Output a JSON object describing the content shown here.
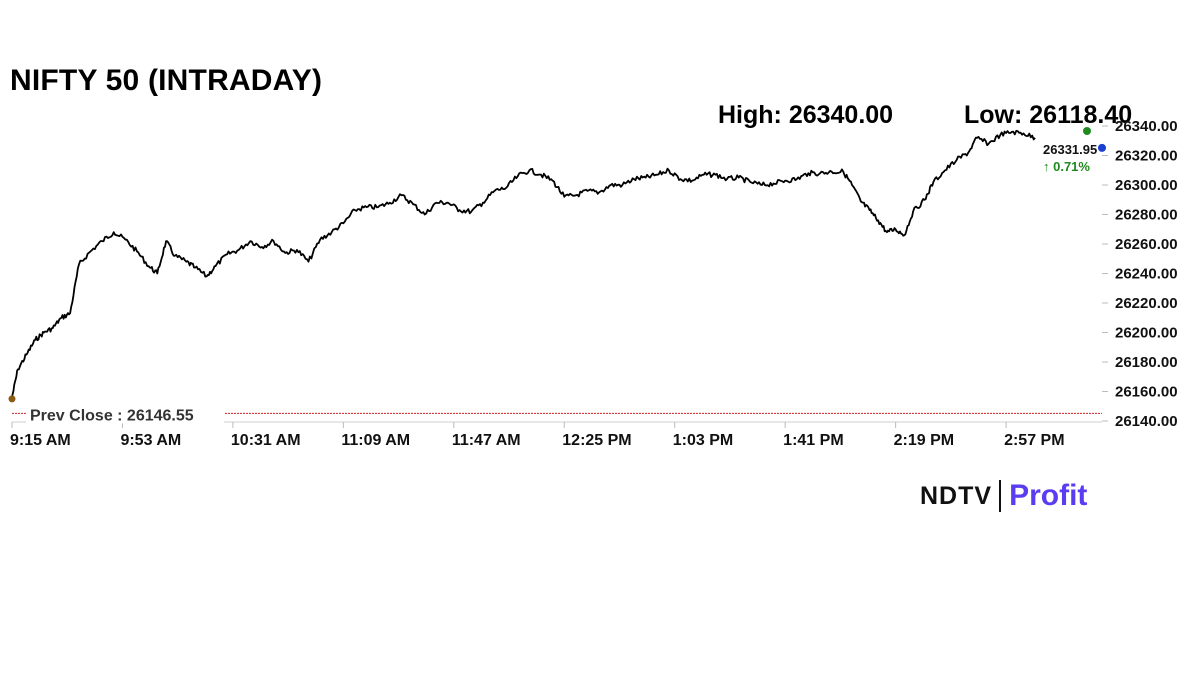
{
  "title": "NIFTY 50 (INTRADAY)",
  "high_label": "High: 26340.00",
  "low_label": "Low: 26118.40",
  "last_value_label": "26331.95",
  "last_change_label": "↑ 0.71%",
  "prev_close_label": "Prev Close : 26146.55",
  "logo": {
    "ndtv": "NDTV",
    "profit": "Profit"
  },
  "colors": {
    "line": "#000000",
    "prev_close": "#cc2222",
    "change_up": "#1f8a1f",
    "marker_high": "#1f8a1f",
    "marker_last": "#1a3fd1",
    "marker_open": "#8b5a14",
    "brand": "#5a3df0"
  },
  "chart_data": {
    "type": "line",
    "title": "NIFTY 50 (INTRADAY)",
    "xlabel": "",
    "ylabel": "",
    "ylim": [
      26140,
      26340
    ],
    "y_ticks": [
      "26140.00",
      "26160.00",
      "26180.00",
      "26200.00",
      "26220.00",
      "26240.00",
      "26260.00",
      "26280.00",
      "26300.00",
      "26320.00",
      "26340.00"
    ],
    "x_ticks": [
      "9:15 AM",
      "9:53 AM",
      "10:31 AM",
      "11:09 AM",
      "11:47 AM",
      "12:25 PM",
      "1:03 PM",
      "1:41 PM",
      "2:19 PM",
      "2:57 PM"
    ],
    "x_range": [
      "9:15 AM",
      "3:30 PM"
    ],
    "grid": false,
    "prev_close": 26146.55,
    "high": 26340.0,
    "low": 26118.4,
    "last": 26331.95,
    "change_pct": 0.71,
    "series": [
      {
        "points": [
          [
            "9:15 AM",
            26156
          ],
          [
            "9:17 AM",
            26175
          ],
          [
            "9:20 AM",
            26185
          ],
          [
            "9:23 AM",
            26195
          ],
          [
            "9:26 AM",
            26200
          ],
          [
            "9:29 AM",
            26203
          ],
          [
            "9:32 AM",
            26210
          ],
          [
            "9:35 AM",
            26213
          ],
          [
            "9:38 AM",
            26246
          ],
          [
            "9:42 AM",
            26255
          ],
          [
            "9:46 AM",
            26262
          ],
          [
            "9:50 AM",
            26268
          ],
          [
            "9:54 AM",
            26263
          ],
          [
            "9:58 AM",
            26255
          ],
          [
            "10:02 AM",
            26245
          ],
          [
            "10:05 AM",
            26240
          ],
          [
            "10:08 AM",
            26262
          ],
          [
            "10:11 AM",
            26252
          ],
          [
            "10:15 AM",
            26248
          ],
          [
            "10:18 AM",
            26244
          ],
          [
            "10:22 AM",
            26238
          ],
          [
            "10:25 AM",
            26245
          ],
          [
            "10:29 AM",
            26253
          ],
          [
            "10:33 AM",
            26256
          ],
          [
            "10:37 AM",
            26262
          ],
          [
            "10:41 AM",
            26258
          ],
          [
            "10:45 AM",
            26262
          ],
          [
            "10:49 AM",
            26254
          ],
          [
            "10:53 AM",
            26256
          ],
          [
            "10:57 AM",
            26248
          ],
          [
            "11:01 AM",
            26263
          ],
          [
            "11:05 AM",
            26268
          ],
          [
            "11:09 AM",
            26274
          ],
          [
            "11:13 AM",
            26283
          ],
          [
            "11:17 AM",
            26285
          ],
          [
            "11:21 AM",
            26285
          ],
          [
            "11:25 AM",
            26288
          ],
          [
            "11:29 AM",
            26293
          ],
          [
            "11:33 AM",
            26287
          ],
          [
            "11:37 AM",
            26280
          ],
          [
            "11:41 AM",
            26288
          ],
          [
            "11:45 AM",
            26288
          ],
          [
            "11:49 AM",
            26283
          ],
          [
            "11:53 AM",
            26282
          ],
          [
            "11:57 AM",
            26288
          ],
          [
            "12:01 PM",
            26296
          ],
          [
            "12:05 PM",
            26298
          ],
          [
            "12:09 PM",
            26306
          ],
          [
            "12:13 PM",
            26310
          ],
          [
            "12:17 PM",
            26307
          ],
          [
            "12:21 PM",
            26303
          ],
          [
            "12:25 PM",
            26292
          ],
          [
            "12:29 PM",
            26293
          ],
          [
            "12:33 PM",
            26296
          ],
          [
            "12:37 PM",
            26295
          ],
          [
            "12:41 PM",
            26300
          ],
          [
            "12:45 PM",
            26300
          ],
          [
            "12:49 PM",
            26304
          ],
          [
            "12:53 PM",
            26305
          ],
          [
            "12:57 PM",
            26307
          ],
          [
            "1:01 PM",
            26310
          ],
          [
            "1:05 PM",
            26304
          ],
          [
            "1:09 PM",
            26303
          ],
          [
            "1:13 PM",
            26307
          ],
          [
            "1:17 PM",
            26307
          ],
          [
            "1:21 PM",
            26304
          ],
          [
            "1:25 PM",
            26305
          ],
          [
            "1:29 PM",
            26302
          ],
          [
            "1:33 PM",
            26300
          ],
          [
            "1:37 PM",
            26301
          ],
          [
            "1:41 PM",
            26303
          ],
          [
            "1:45 PM",
            26304
          ],
          [
            "1:49 PM",
            26308
          ],
          [
            "1:53 PM",
            26308
          ],
          [
            "1:57 PM",
            26309
          ],
          [
            "2:01 PM",
            26309
          ],
          [
            "2:04 PM",
            26300
          ],
          [
            "2:07 PM",
            26289
          ],
          [
            "2:10 PM",
            26283
          ],
          [
            "2:13 PM",
            26276
          ],
          [
            "2:16 PM",
            26268
          ],
          [
            "2:19 PM",
            26270
          ],
          [
            "2:22 PM",
            26266
          ],
          [
            "2:25 PM",
            26282
          ],
          [
            "2:29 PM",
            26290
          ],
          [
            "2:32 PM",
            26302
          ],
          [
            "2:36 PM",
            26310
          ],
          [
            "2:40 PM",
            26317
          ],
          [
            "2:44 PM",
            26322
          ],
          [
            "2:47 PM",
            26332
          ],
          [
            "2:51 PM",
            26328
          ],
          [
            "2:55 PM",
            26334
          ],
          [
            "2:59 PM",
            26336
          ],
          [
            "3:03 PM",
            26335
          ],
          [
            "3:07 PM",
            26332
          ]
        ]
      }
    ]
  }
}
